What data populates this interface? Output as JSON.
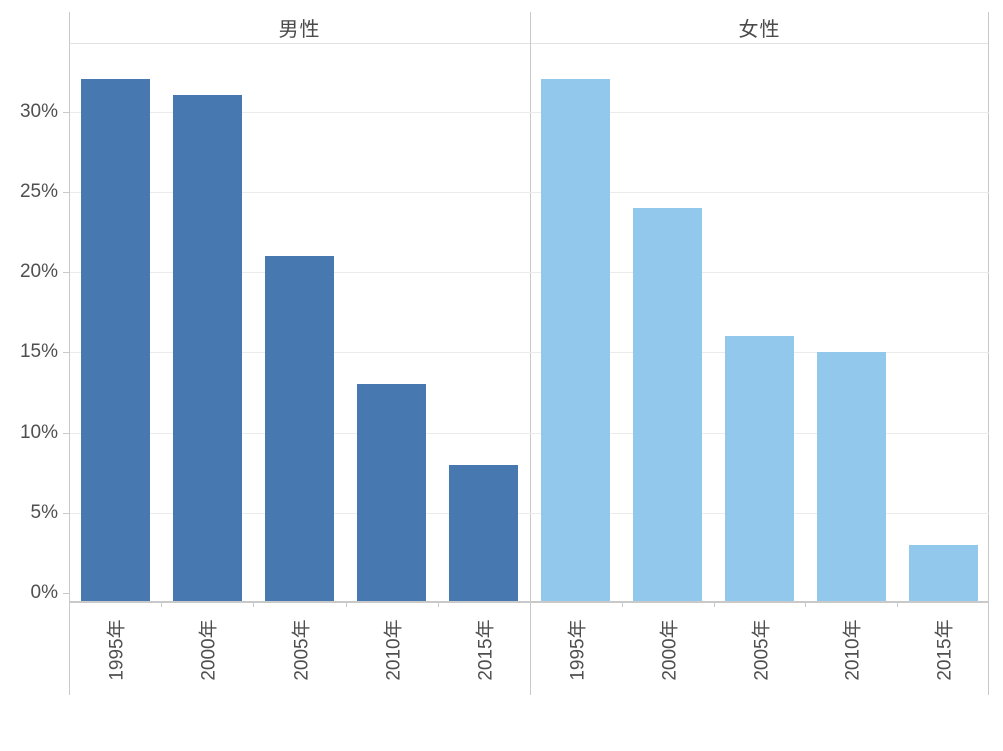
{
  "chart_data": {
    "type": "bar",
    "title": "",
    "faceted_by": "gender",
    "categories": [
      "1995年",
      "2000年",
      "2005年",
      "2010年",
      "2015年"
    ],
    "series": [
      {
        "name": "男性",
        "color": "#4878b0",
        "values": [
          32,
          31,
          21,
          13,
          8
        ]
      },
      {
        "name": "女性",
        "color": "#92c8ec",
        "values": [
          32,
          24,
          16,
          15,
          3
        ]
      }
    ],
    "yticks": [
      0,
      5,
      10,
      15,
      20,
      25,
      30
    ],
    "ytick_labels": [
      "0%",
      "5%",
      "10%",
      "15%",
      "20%",
      "25%",
      "30%"
    ],
    "ylim": [
      0,
      34
    ],
    "grid": true,
    "legend_position": "none",
    "xlabel_rotation": -90
  },
  "colors": {
    "male_bar": "#4878b0",
    "female_bar": "#92c8ec",
    "gridline": "#ebebeb",
    "axis_line": "#c9c9c9",
    "text": "#4f4f4f",
    "background": "#ffffff"
  }
}
